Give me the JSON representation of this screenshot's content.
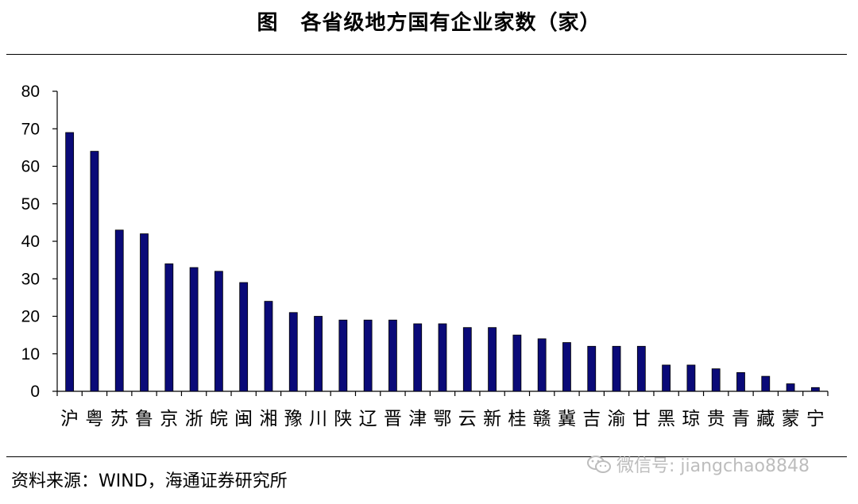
{
  "header": {
    "fig_label": "图",
    "title": "各省级地方国有企业家数（家）"
  },
  "footer": {
    "source": "资料来源：WIND，海通证券研究所"
  },
  "watermark": {
    "text": "微信号: jiangchao8848",
    "icon": "wechat-icon"
  },
  "colors": {
    "bar_fill": "#0a0a78",
    "bar_stroke": "#000000",
    "axis": "#000000"
  },
  "chart_data": {
    "type": "bar",
    "title": "各省级地方国有企业家数（家）",
    "xlabel": "",
    "ylabel": "",
    "ylim": [
      0,
      80
    ],
    "yticks": [
      0,
      10,
      20,
      30,
      40,
      50,
      60,
      70,
      80
    ],
    "grid": false,
    "legend": "none",
    "categories": [
      "沪",
      "粤",
      "苏",
      "鲁",
      "京",
      "浙",
      "皖",
      "闽",
      "湘",
      "豫",
      "川",
      "陕",
      "辽",
      "晋",
      "津",
      "鄂",
      "云",
      "新",
      "桂",
      "赣",
      "冀",
      "吉",
      "渝",
      "甘",
      "黑",
      "琼",
      "贵",
      "青",
      "藏",
      "蒙",
      "宁"
    ],
    "values": [
      69,
      64,
      43,
      42,
      34,
      33,
      32,
      29,
      24,
      21,
      20,
      19,
      19,
      19,
      18,
      18,
      17,
      17,
      15,
      14,
      13,
      12,
      12,
      12,
      7,
      7,
      6,
      5,
      4,
      2,
      1
    ]
  }
}
